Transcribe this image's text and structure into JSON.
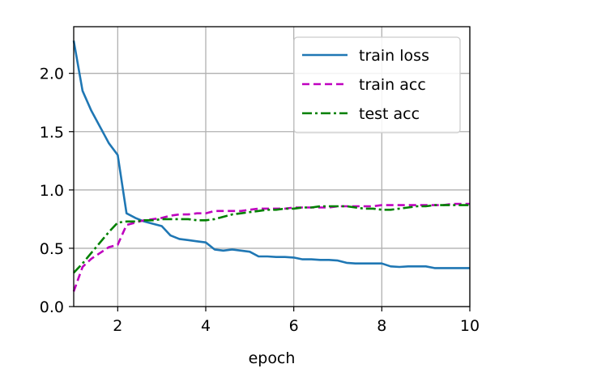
{
  "chart_data": {
    "type": "line",
    "title": "",
    "xlabel": "epoch",
    "ylabel": "",
    "xlim": [
      1,
      10
    ],
    "ylim": [
      0,
      2.4
    ],
    "xticks": [
      "2",
      "4",
      "6",
      "8",
      "10"
    ],
    "yticks": [
      "0.0",
      "0.5",
      "1.0",
      "1.5",
      "2.0"
    ],
    "grid": true,
    "legend_position": "top-right",
    "series": [
      {
        "name": "train loss",
        "color": "#1f77b4",
        "dash": "solid",
        "x": [
          1.0,
          1.2,
          1.4,
          1.6,
          1.8,
          2.0,
          2.2,
          2.4,
          2.6,
          2.8,
          3.0,
          3.2,
          3.4,
          3.6,
          3.8,
          4.0,
          4.2,
          4.4,
          4.6,
          4.8,
          5.0,
          5.2,
          5.4,
          5.6,
          5.8,
          6.0,
          6.2,
          6.4,
          6.6,
          6.8,
          7.0,
          7.2,
          7.4,
          7.6,
          7.8,
          8.0,
          8.2,
          8.4,
          8.6,
          8.8,
          9.0,
          9.2,
          9.4,
          9.6,
          9.8,
          10.0
        ],
        "y": [
          2.28,
          1.85,
          1.68,
          1.54,
          1.4,
          1.3,
          0.8,
          0.76,
          0.73,
          0.71,
          0.69,
          0.61,
          0.58,
          0.57,
          0.56,
          0.55,
          0.49,
          0.48,
          0.49,
          0.48,
          0.47,
          0.43,
          0.43,
          0.425,
          0.425,
          0.42,
          0.405,
          0.405,
          0.4,
          0.4,
          0.395,
          0.375,
          0.37,
          0.37,
          0.37,
          0.37,
          0.345,
          0.34,
          0.345,
          0.345,
          0.345,
          0.33,
          0.33,
          0.33,
          0.33,
          0.33
        ]
      },
      {
        "name": "train acc",
        "color": "#bf00bf",
        "dash": "dashed",
        "x": [
          1.0,
          1.2,
          1.4,
          1.6,
          1.8,
          2.0,
          2.2,
          2.4,
          2.6,
          2.8,
          3.0,
          3.2,
          3.4,
          3.6,
          3.8,
          4.0,
          4.2,
          4.4,
          4.6,
          4.8,
          5.0,
          5.2,
          5.4,
          5.6,
          5.8,
          6.0,
          6.2,
          6.4,
          6.6,
          6.8,
          7.0,
          7.2,
          7.4,
          7.6,
          7.8,
          8.0,
          8.2,
          8.4,
          8.6,
          8.8,
          9.0,
          9.2,
          9.4,
          9.6,
          9.8,
          10.0
        ],
        "y": [
          0.13,
          0.34,
          0.41,
          0.46,
          0.51,
          0.53,
          0.7,
          0.72,
          0.74,
          0.75,
          0.76,
          0.78,
          0.79,
          0.79,
          0.8,
          0.8,
          0.82,
          0.82,
          0.82,
          0.82,
          0.83,
          0.84,
          0.84,
          0.84,
          0.84,
          0.85,
          0.85,
          0.85,
          0.85,
          0.85,
          0.86,
          0.86,
          0.86,
          0.86,
          0.86,
          0.87,
          0.87,
          0.87,
          0.87,
          0.87,
          0.87,
          0.87,
          0.87,
          0.88,
          0.88,
          0.88
        ]
      },
      {
        "name": "test acc",
        "color": "#008000",
        "dash": "dashdot",
        "x": [
          1.0,
          1.2,
          1.4,
          1.6,
          1.8,
          2.0,
          2.2,
          2.4,
          2.6,
          2.8,
          3.0,
          3.2,
          3.4,
          3.6,
          3.8,
          4.0,
          4.2,
          4.4,
          4.6,
          4.8,
          5.0,
          5.2,
          5.4,
          5.6,
          5.8,
          6.0,
          6.2,
          6.4,
          6.6,
          6.8,
          7.0,
          7.2,
          7.4,
          7.6,
          7.8,
          8.0,
          8.2,
          8.4,
          8.6,
          8.8,
          9.0,
          9.2,
          9.4,
          9.6,
          9.8,
          10.0
        ],
        "y": [
          0.29,
          0.37,
          0.46,
          0.55,
          0.64,
          0.72,
          0.73,
          0.73,
          0.74,
          0.74,
          0.75,
          0.75,
          0.75,
          0.75,
          0.74,
          0.74,
          0.75,
          0.77,
          0.79,
          0.8,
          0.81,
          0.82,
          0.83,
          0.83,
          0.84,
          0.84,
          0.85,
          0.85,
          0.86,
          0.86,
          0.86,
          0.86,
          0.85,
          0.84,
          0.84,
          0.83,
          0.83,
          0.84,
          0.85,
          0.86,
          0.86,
          0.87,
          0.87,
          0.87,
          0.87,
          0.87
        ]
      }
    ]
  }
}
